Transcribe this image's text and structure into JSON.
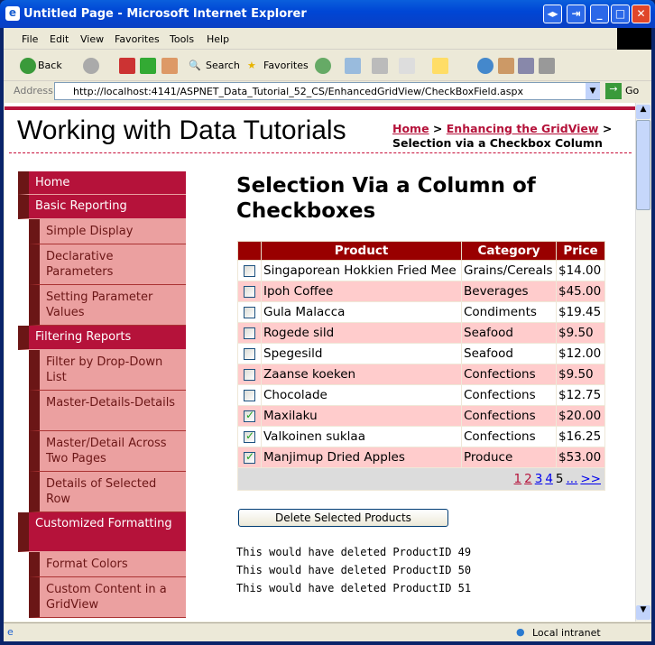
{
  "window": {
    "title": "Untitled Page - Microsoft Internet Explorer"
  },
  "menu": [
    "File",
    "Edit",
    "View",
    "Favorites",
    "Tools",
    "Help"
  ],
  "toolbar": {
    "back": "Back",
    "search": "Search",
    "favorites": "Favorites"
  },
  "address": {
    "label": "Address",
    "url": "http://localhost:4141/ASPNET_Data_Tutorial_52_CS/EnhancedGridView/CheckBoxField.aspx",
    "go": "Go"
  },
  "site": {
    "title": "Working with Data Tutorials"
  },
  "breadcrumb": {
    "home": "Home",
    "parent": "Enhancing the GridView",
    "sep": ">",
    "current": "Selection via a Checkbox Column"
  },
  "sidebar": {
    "items": [
      {
        "label": "Home",
        "level": "top"
      },
      {
        "label": "Basic Reporting",
        "level": "top"
      },
      {
        "label": "Simple Display",
        "level": "sub"
      },
      {
        "label": "Declarative Parameters",
        "level": "sub"
      },
      {
        "label": "Setting Parameter Values",
        "level": "sub"
      },
      {
        "label": "Filtering Reports",
        "level": "top"
      },
      {
        "label": "Filter by Drop-Down List",
        "level": "sub"
      },
      {
        "label": "Master-Details-Details",
        "level": "sub"
      },
      {
        "label": "Master/Detail Across Two Pages",
        "level": "sub"
      },
      {
        "label": "Details of Selected Row",
        "level": "sub"
      },
      {
        "label": "Customized Formatting",
        "level": "top"
      },
      {
        "label": "Format Colors",
        "level": "sub"
      },
      {
        "label": "Custom Content in a GridView",
        "level": "sub"
      }
    ]
  },
  "main": {
    "heading": "Selection Via a Column of Checkboxes",
    "grid": {
      "columns": [
        "",
        "Product",
        "Category",
        "Price"
      ],
      "rows": [
        {
          "checked": false,
          "product": "Singaporean Hokkien Fried Mee",
          "category": "Grains/Cereals",
          "price": "$14.00"
        },
        {
          "checked": false,
          "product": "Ipoh Coffee",
          "category": "Beverages",
          "price": "$45.00"
        },
        {
          "checked": false,
          "product": "Gula Malacca",
          "category": "Condiments",
          "price": "$19.45"
        },
        {
          "checked": false,
          "product": "Rogede sild",
          "category": "Seafood",
          "price": "$9.50"
        },
        {
          "checked": false,
          "product": "Spegesild",
          "category": "Seafood",
          "price": "$12.00"
        },
        {
          "checked": false,
          "product": "Zaanse koeken",
          "category": "Confections",
          "price": "$9.50"
        },
        {
          "checked": false,
          "product": "Chocolade",
          "category": "Confections",
          "price": "$12.75"
        },
        {
          "checked": true,
          "product": "Maxilaku",
          "category": "Confections",
          "price": "$20.00"
        },
        {
          "checked": true,
          "product": "Valkoinen suklaa",
          "category": "Confections",
          "price": "$16.25"
        },
        {
          "checked": true,
          "product": "Manjimup Dried Apples",
          "category": "Produce",
          "price": "$53.00"
        }
      ],
      "pager": [
        {
          "label": "1",
          "visited": true
        },
        {
          "label": "2",
          "visited": true
        },
        {
          "label": "3"
        },
        {
          "label": "4"
        },
        {
          "label": "5",
          "current": true
        },
        {
          "label": "..."
        },
        {
          "label": ">>"
        }
      ]
    },
    "delete_button": "Delete Selected Products",
    "messages": [
      "This would have deleted ProductID 49",
      "This would have deleted ProductID 50",
      "This would have deleted ProductID 51"
    ]
  },
  "status": {
    "zone": "Local intranet"
  },
  "colors": {
    "accent": "#b5123a",
    "header": "#990000",
    "alt_row": "#ffcccc",
    "sub_nav": "#eba0a0"
  }
}
